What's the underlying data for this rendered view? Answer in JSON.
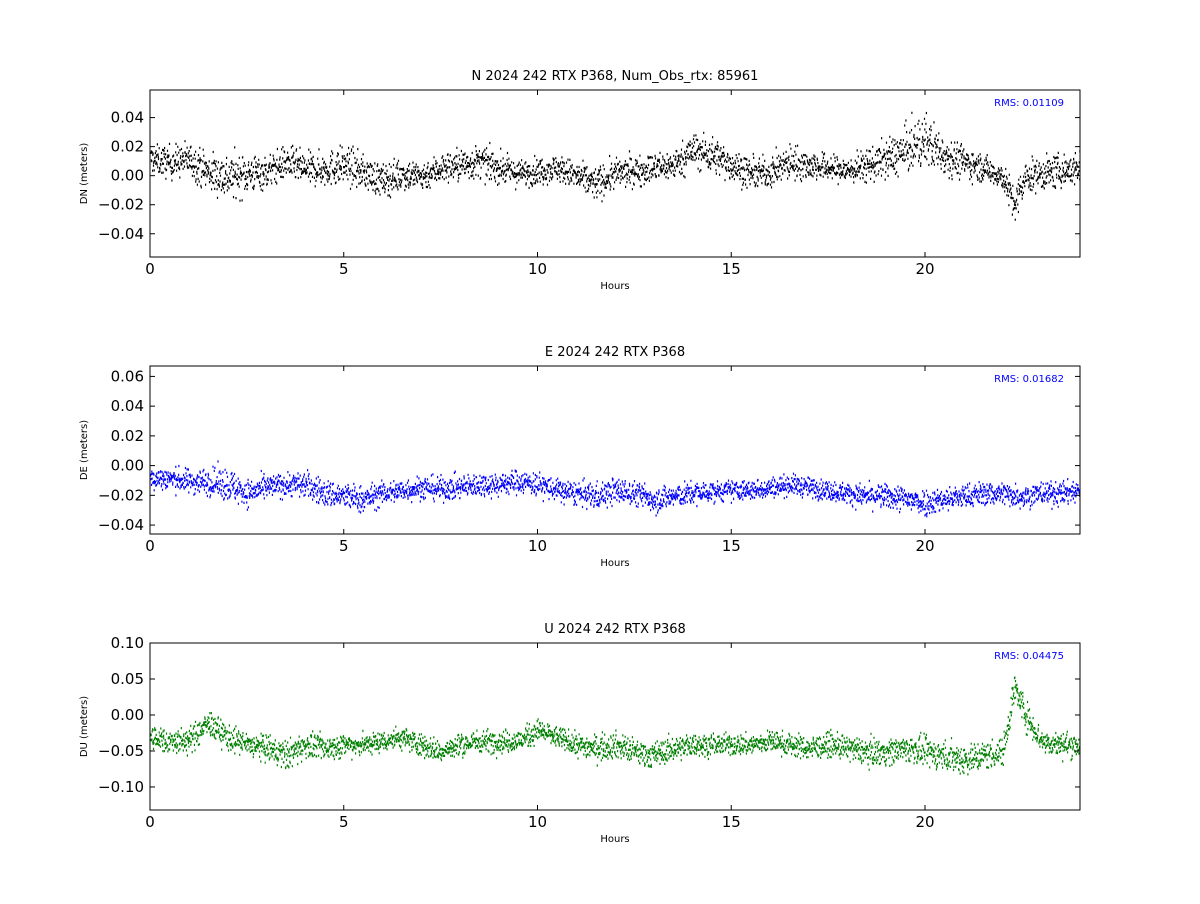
{
  "figure": {
    "background": "#ffffff"
  },
  "chart_data": [
    {
      "type": "scatter",
      "title": "N 2024 242 RTX  P368, Num_Obs_rtx: 85961",
      "xlabel": "Hours",
      "ylabel": "DN (meters)",
      "xlim": [
        0,
        24
      ],
      "ylim": [
        -0.056,
        0.059
      ],
      "xticks": [
        0,
        5,
        10,
        15,
        20
      ],
      "xtick_labels": [
        "0",
        "5",
        "10",
        "15",
        "20"
      ],
      "yticks": [
        -0.04,
        -0.02,
        0.0,
        0.02,
        0.04
      ],
      "ytick_labels": [
        "−0.04",
        "−0.02",
        "0.00",
        "0.02",
        "0.04"
      ],
      "color": "#000000",
      "grid": false,
      "annotation": "RMS:  0.01109",
      "annotation_color": "#0000ff",
      "series": [
        {
          "x": [
            0,
            0.5,
            1,
            1.5,
            2,
            2.5,
            3,
            3.5,
            4,
            4.5,
            5,
            5.5,
            6,
            6.5,
            7,
            7.5,
            8,
            8.5,
            9,
            9.5,
            10,
            10.5,
            11,
            11.5,
            12,
            12.5,
            13,
            13.5,
            14,
            14.5,
            15,
            15.5,
            16,
            16.5,
            17,
            17.5,
            18,
            18.5,
            19,
            19.5,
            20,
            20.5,
            21,
            21.5,
            22,
            22.3,
            22.6,
            23,
            23.5,
            24
          ],
          "y": [
            0.012,
            0.01,
            0.012,
            0.003,
            0.0,
            0.002,
            0.003,
            0.01,
            0.005,
            0.005,
            0.008,
            0.003,
            -0.003,
            0.002,
            0.0,
            0.006,
            0.008,
            0.01,
            0.006,
            0.002,
            0.004,
            0.006,
            0.0,
            -0.005,
            0.002,
            0.004,
            0.006,
            0.008,
            0.018,
            0.015,
            0.008,
            0.002,
            0.003,
            0.01,
            0.008,
            0.006,
            0.004,
            0.008,
            0.012,
            0.018,
            0.025,
            0.015,
            0.01,
            0.006,
            0.0,
            -0.02,
            0.0,
            0.002,
            0.004,
            0.006
          ],
          "spread": [
            0.008,
            0.01,
            0.01,
            0.012,
            0.014,
            0.012,
            0.01,
            0.01,
            0.01,
            0.01,
            0.012,
            0.01,
            0.01,
            0.01,
            0.009,
            0.009,
            0.01,
            0.01,
            0.009,
            0.008,
            0.008,
            0.008,
            0.009,
            0.01,
            0.009,
            0.009,
            0.009,
            0.009,
            0.011,
            0.011,
            0.01,
            0.009,
            0.009,
            0.011,
            0.009,
            0.008,
            0.008,
            0.01,
            0.012,
            0.014,
            0.016,
            0.012,
            0.01,
            0.008,
            0.008,
            0.012,
            0.01,
            0.01,
            0.01,
            0.01
          ]
        }
      ]
    },
    {
      "type": "scatter",
      "title": "E 2024 242 RTX  P368",
      "xlabel": "Hours",
      "ylabel": "DE (meters)",
      "xlim": [
        0,
        24
      ],
      "ylim": [
        -0.046,
        0.067
      ],
      "xticks": [
        0,
        5,
        10,
        15,
        20
      ],
      "xtick_labels": [
        "0",
        "5",
        "10",
        "15",
        "20"
      ],
      "yticks": [
        -0.04,
        -0.02,
        0.0,
        0.02,
        0.04,
        0.06
      ],
      "ytick_labels": [
        "−0.04",
        "−0.02",
        "0.00",
        "0.02",
        "0.04",
        "0.06"
      ],
      "color": "#0000ff",
      "grid": false,
      "annotation": "RMS:  0.01682",
      "annotation_color": "#0000ff",
      "series": [
        {
          "x": [
            0,
            0.5,
            1,
            1.5,
            2,
            2.5,
            3,
            3.5,
            4,
            4.5,
            5,
            5.5,
            6,
            6.5,
            7,
            7.5,
            8,
            8.5,
            9,
            9.5,
            10,
            10.5,
            11,
            11.5,
            12,
            12.5,
            13,
            13.5,
            14,
            14.5,
            15,
            15.5,
            16,
            16.5,
            17,
            17.5,
            18,
            18.5,
            19,
            19.5,
            20,
            20.5,
            21,
            21.5,
            22,
            22.5,
            23,
            23.5,
            24
          ],
          "y": [
            -0.008,
            -0.008,
            -0.01,
            -0.01,
            -0.012,
            -0.018,
            -0.014,
            -0.012,
            -0.012,
            -0.018,
            -0.02,
            -0.022,
            -0.018,
            -0.016,
            -0.014,
            -0.015,
            -0.014,
            -0.012,
            -0.012,
            -0.01,
            -0.012,
            -0.016,
            -0.018,
            -0.02,
            -0.016,
            -0.018,
            -0.022,
            -0.02,
            -0.018,
            -0.017,
            -0.016,
            -0.016,
            -0.014,
            -0.012,
            -0.014,
            -0.016,
            -0.018,
            -0.02,
            -0.02,
            -0.022,
            -0.024,
            -0.022,
            -0.02,
            -0.018,
            -0.018,
            -0.02,
            -0.018,
            -0.018,
            -0.016
          ],
          "spread": [
            0.007,
            0.007,
            0.007,
            0.008,
            0.01,
            0.008,
            0.007,
            0.007,
            0.008,
            0.008,
            0.008,
            0.008,
            0.007,
            0.007,
            0.007,
            0.007,
            0.007,
            0.007,
            0.007,
            0.007,
            0.007,
            0.007,
            0.007,
            0.008,
            0.008,
            0.007,
            0.008,
            0.007,
            0.007,
            0.006,
            0.006,
            0.006,
            0.006,
            0.006,
            0.006,
            0.006,
            0.006,
            0.007,
            0.007,
            0.008,
            0.008,
            0.007,
            0.007,
            0.007,
            0.007,
            0.007,
            0.007,
            0.007,
            0.007
          ]
        }
      ]
    },
    {
      "type": "scatter",
      "title": "U 2024 242 RTX  P368",
      "xlabel": "Hours",
      "ylabel": "DU (meters)",
      "xlim": [
        0,
        24
      ],
      "ylim": [
        -0.132,
        0.1
      ],
      "xticks": [
        0,
        5,
        10,
        15,
        20
      ],
      "xtick_labels": [
        "0",
        "5",
        "10",
        "15",
        "20"
      ],
      "yticks": [
        -0.1,
        -0.05,
        0.0,
        0.05,
        0.1
      ],
      "ytick_labels": [
        "−0.10",
        "−0.05",
        "0.00",
        "0.05",
        "0.10"
      ],
      "color": "#008000",
      "grid": false,
      "annotation": "RMS:  0.04475",
      "annotation_color": "#0000ff",
      "series": [
        {
          "x": [
            0,
            0.5,
            1,
            1.5,
            2,
            2.5,
            3,
            3.5,
            4,
            4.5,
            5,
            5.5,
            6,
            6.5,
            7,
            7.5,
            8,
            8.5,
            9,
            9.5,
            10,
            10.5,
            11,
            11.5,
            12,
            12.5,
            13,
            13.5,
            14,
            14.5,
            15,
            15.5,
            16,
            16.5,
            17,
            17.5,
            18,
            18.5,
            19,
            19.5,
            20,
            20.5,
            21,
            21.5,
            22,
            22.3,
            22.6,
            23,
            23.5,
            24
          ],
          "y": [
            -0.03,
            -0.035,
            -0.035,
            -0.01,
            -0.03,
            -0.04,
            -0.045,
            -0.055,
            -0.04,
            -0.045,
            -0.04,
            -0.04,
            -0.035,
            -0.03,
            -0.04,
            -0.05,
            -0.04,
            -0.035,
            -0.035,
            -0.035,
            -0.02,
            -0.03,
            -0.04,
            -0.045,
            -0.04,
            -0.05,
            -0.055,
            -0.045,
            -0.04,
            -0.04,
            -0.04,
            -0.04,
            -0.035,
            -0.04,
            -0.045,
            -0.04,
            -0.045,
            -0.05,
            -0.05,
            -0.045,
            -0.05,
            -0.055,
            -0.06,
            -0.055,
            -0.05,
            0.04,
            0.0,
            -0.035,
            -0.04,
            -0.04
          ],
          "spread": [
            0.015,
            0.015,
            0.016,
            0.016,
            0.016,
            0.015,
            0.016,
            0.018,
            0.016,
            0.015,
            0.014,
            0.013,
            0.013,
            0.014,
            0.014,
            0.014,
            0.014,
            0.014,
            0.014,
            0.014,
            0.014,
            0.013,
            0.014,
            0.016,
            0.016,
            0.016,
            0.016,
            0.015,
            0.014,
            0.013,
            0.013,
            0.013,
            0.013,
            0.014,
            0.014,
            0.014,
            0.015,
            0.016,
            0.016,
            0.016,
            0.017,
            0.018,
            0.02,
            0.018,
            0.017,
            0.02,
            0.018,
            0.015,
            0.015,
            0.015
          ]
        }
      ]
    }
  ]
}
